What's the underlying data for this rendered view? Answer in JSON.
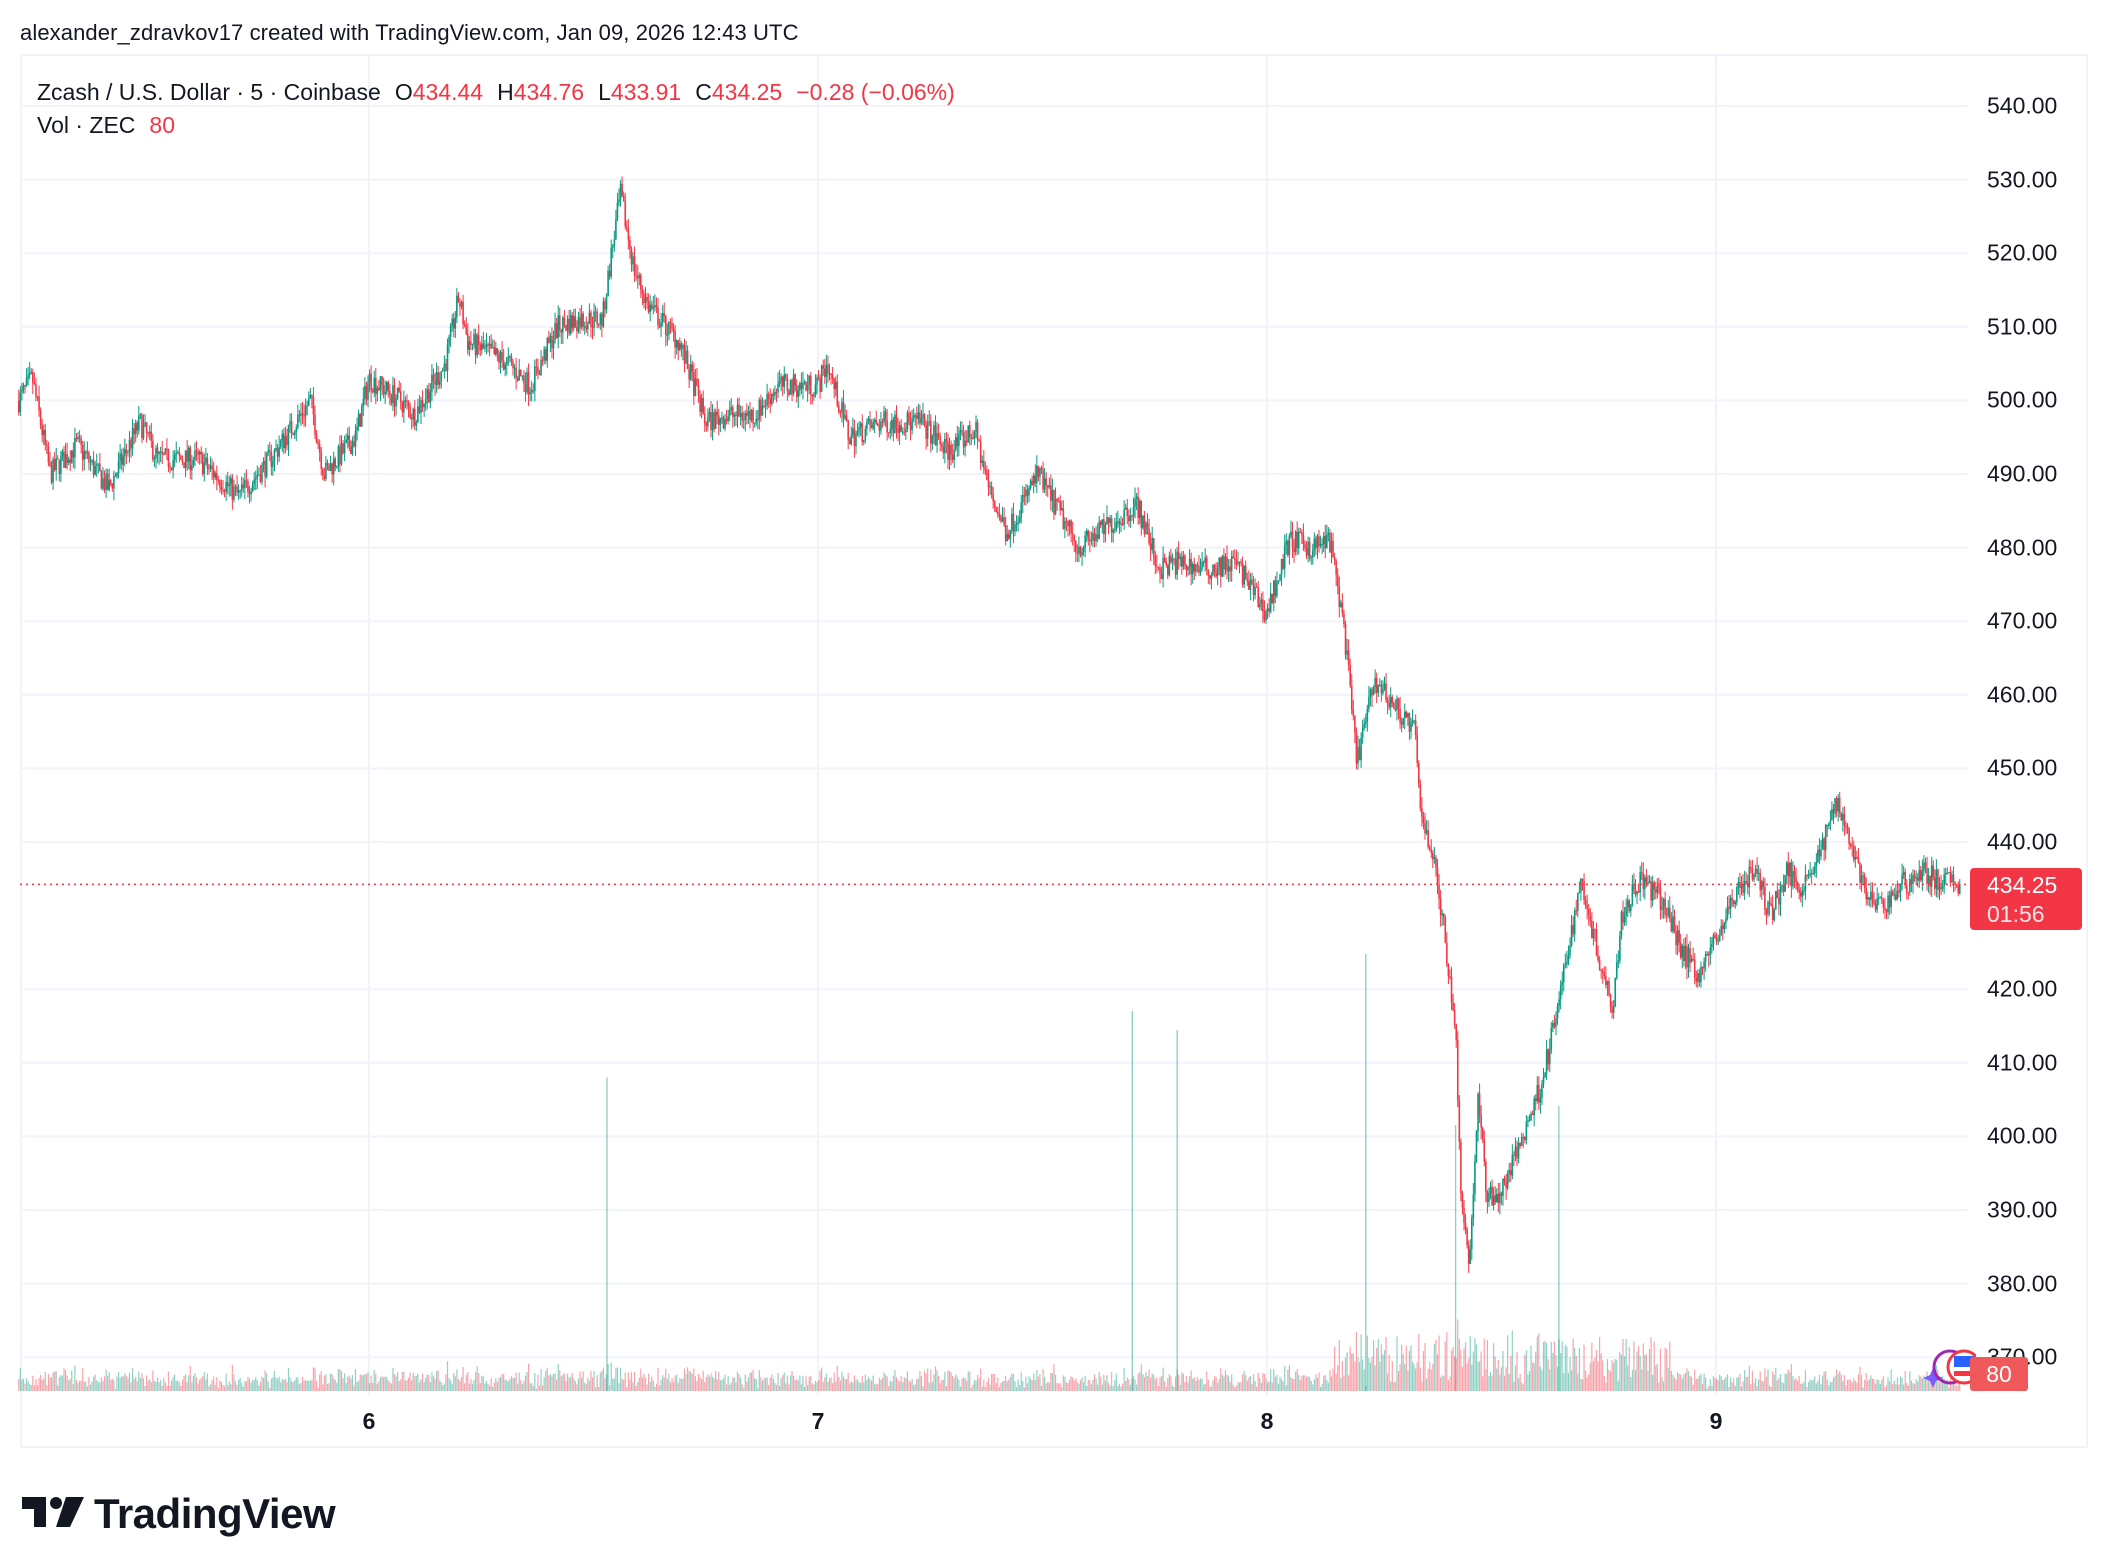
{
  "credit": "alexander_zdravkov17 created with TradingView.com, Jan 09, 2026 12:43 UTC",
  "legend": {
    "symbol": "Zcash / U.S. Dollar · 5 · Coinbase",
    "open_label": "O",
    "open": "434.44",
    "high_label": "H",
    "high": "434.76",
    "low_label": "L",
    "low": "433.91",
    "close_label": "C",
    "close": "434.25",
    "change": "−0.28 (−0.06%)",
    "volume_label": "Vol · ZEC",
    "volume": "80"
  },
  "price_tag": {
    "price": "434.25",
    "countdown": "01:56"
  },
  "volume_tag": "80",
  "logo_text": "TradingView",
  "colors": {
    "up": "#089981",
    "down": "#F23645",
    "grid": "#f0f3fa",
    "last_price_line": "#F23645"
  },
  "chart_data": {
    "type": "candlestick",
    "title": "Zcash / U.S. Dollar · 5 · Coinbase",
    "timeframe": "5",
    "exchange": "Coinbase",
    "xlabel": "",
    "ylabel": "",
    "x_ticks": [
      "6",
      "7",
      "8",
      "9"
    ],
    "y_ticks": [
      "540.00",
      "530.00",
      "520.00",
      "510.00",
      "500.00",
      "490.00",
      "480.00",
      "470.00",
      "460.00",
      "450.00",
      "440.00",
      "420.00",
      "410.00",
      "400.00",
      "390.00",
      "380.00",
      "370.00"
    ],
    "ylim": [
      366,
      543
    ],
    "grid": true,
    "last": {
      "open": 434.44,
      "high": 434.76,
      "low": 433.91,
      "close": 434.25,
      "change": -0.28,
      "change_pct": -0.06,
      "volume": 80
    },
    "price_path": {
      "x_unit": "day of month (Jan 2026)",
      "x": [
        5.22,
        5.25,
        5.29,
        5.35,
        5.42,
        5.49,
        5.53,
        5.62,
        5.71,
        5.78,
        5.87,
        5.9,
        5.97,
        6.0,
        6.07,
        6.1,
        6.17,
        6.2,
        6.22,
        6.31,
        6.36,
        6.42,
        6.47,
        6.52,
        6.54,
        6.56,
        6.59,
        6.62,
        6.69,
        6.73,
        6.75,
        6.8,
        6.86,
        6.91,
        7.0,
        7.02,
        7.07,
        7.14,
        7.23,
        7.29,
        7.35,
        7.38,
        7.42,
        7.49,
        7.58,
        7.67,
        7.71,
        7.76,
        7.8,
        7.87,
        7.93,
        7.999,
        8.05,
        8.1,
        8.14,
        8.17,
        8.2,
        8.24,
        8.29,
        8.33,
        8.34,
        8.37,
        8.39,
        8.42,
        8.43,
        8.45,
        8.47,
        8.49,
        8.52,
        8.57,
        8.61,
        8.64,
        8.67,
        8.7,
        8.74,
        8.77,
        8.79,
        8.83,
        8.88,
        8.92,
        8.96,
        9.01,
        9.05,
        9.09,
        9.12,
        9.16,
        9.19,
        9.23,
        9.27,
        9.31,
        9.34,
        9.37,
        9.41,
        9.46,
        9.5,
        9.54,
        9.545
      ],
      "close": [
        500,
        503,
        490,
        494,
        488,
        497,
        492,
        492,
        487,
        492,
        500,
        490,
        495,
        503,
        500,
        498,
        505,
        514,
        508,
        505,
        502,
        510,
        511,
        511,
        520,
        528,
        518,
        513,
        508,
        501,
        497,
        498,
        498,
        502,
        502,
        505,
        495,
        497,
        497,
        493,
        496,
        488,
        482,
        490,
        480,
        484,
        486,
        477,
        478,
        477,
        478,
        471,
        481,
        480,
        481,
        470,
        451,
        462,
        458,
        455,
        445,
        438,
        430,
        415,
        395,
        382,
        405,
        392,
        392,
        400,
        407,
        415,
        425,
        435,
        424,
        418,
        430,
        435,
        432,
        426,
        422,
        428,
        434,
        436,
        430,
        436,
        434,
        438,
        446,
        438,
        432,
        431,
        434,
        436,
        434.5,
        434.44,
        434.25
      ]
    },
    "volume_ylim": [
      0,
      1800
    ],
    "notable_volume_spikes": [
      {
        "x": 6.53,
        "approx": 1650
      },
      {
        "x": 7.7,
        "approx": 2000
      },
      {
        "x": 7.8,
        "approx": 1900
      },
      {
        "x": 8.22,
        "approx": 2300
      },
      {
        "x": 8.42,
        "approx": 1400
      },
      {
        "x": 8.65,
        "approx": 1500
      }
    ]
  }
}
